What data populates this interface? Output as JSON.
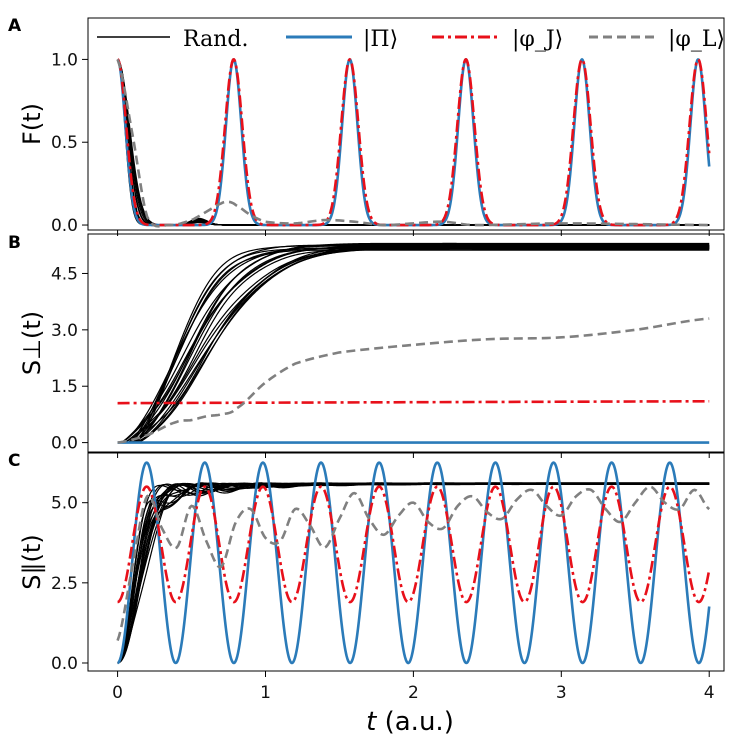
{
  "figure": {
    "xlabel_var": "t",
    "xlabel_unit": " (a.u.)",
    "colors": {
      "random": "#000000",
      "pi": "#2b7bb9",
      "phiJ": "#e8101a",
      "phiL": "#808080"
    }
  },
  "legend": {
    "items": [
      {
        "label": "Rand.",
        "style": "solid",
        "color": "#000000"
      },
      {
        "label": "|Π⟩",
        "style": "solid-thick",
        "color": "#2b7bb9"
      },
      {
        "label": "|φ_J⟩",
        "style": "dash-dot",
        "color": "#e8101a"
      },
      {
        "label": "|φ_L⟩",
        "style": "dashed",
        "color": "#808080"
      }
    ]
  },
  "chart_data": [
    {
      "panel": "A",
      "type": "line",
      "ylabel": "F(t)",
      "xlim": [
        -0.2,
        4.1
      ],
      "ylim": [
        -0.03,
        1.25
      ],
      "xticks": [
        0,
        1,
        2,
        3,
        4
      ],
      "yticks": [
        0.0,
        0.5,
        1.0
      ],
      "ytick_labels": [
        "0.0",
        "0.5",
        "1.0"
      ],
      "show_xtick_labels": false,
      "series": [
        {
          "name": "|Π⟩",
          "period": 0.785,
          "width": 0.052,
          "amplitude": 1.0
        },
        {
          "name": "|φ_J⟩",
          "period": 0.785,
          "width": 0.058,
          "amplitude": 1.0
        },
        {
          "name": "|φ_L⟩",
          "x": [
            0,
            0.1,
            0.2,
            0.35,
            0.5,
            0.6,
            0.7,
            0.75,
            0.8,
            0.9,
            1.0,
            1.2,
            1.4,
            1.6,
            1.8,
            2.0,
            2.2,
            2.4,
            3.0,
            4.0
          ],
          "y": [
            1.0,
            0.55,
            0.05,
            0.0,
            0.03,
            0.08,
            0.13,
            0.14,
            0.12,
            0.06,
            0.02,
            0.01,
            0.03,
            0.02,
            0.0,
            0.01,
            0.02,
            0.0,
            0.01,
            0.0
          ]
        },
        {
          "name": "Rand.",
          "count": 20,
          "decay_rate_range": [
            12,
            22
          ]
        }
      ]
    },
    {
      "panel": "B",
      "type": "line",
      "ylabel": "S⊥(t)",
      "xlim": [
        -0.2,
        4.1
      ],
      "ylim": [
        -0.25,
        5.55
      ],
      "xticks": [
        0,
        1,
        2,
        3,
        4
      ],
      "yticks": [
        0.0,
        1.5,
        3.0,
        4.5
      ],
      "ytick_labels": [
        "0.0",
        "1.5",
        "3.0",
        "4.5"
      ],
      "show_xtick_labels": false,
      "series": [
        {
          "name": "|Π⟩",
          "x": [
            0,
            4
          ],
          "y": [
            0.0,
            0.0
          ]
        },
        {
          "name": "|φ_J⟩",
          "x": [
            0,
            4
          ],
          "y": [
            1.05,
            1.1
          ]
        },
        {
          "name": "|φ_L⟩",
          "x": [
            0,
            0.2,
            0.4,
            0.5,
            0.6,
            0.7,
            0.8,
            1.0,
            1.2,
            1.5,
            2.0,
            2.5,
            3.0,
            3.5,
            4.0
          ],
          "y": [
            0.0,
            0.2,
            0.55,
            0.6,
            0.7,
            0.75,
            0.9,
            1.6,
            2.1,
            2.4,
            2.6,
            2.75,
            2.8,
            3.0,
            3.3
          ]
        },
        {
          "name": "Rand.",
          "count": 20,
          "saturation_range": [
            5.1,
            5.32
          ]
        }
      ]
    },
    {
      "panel": "C",
      "type": "line",
      "ylabel": "S∥(t)",
      "xlim": [
        -0.2,
        4.1
      ],
      "ylim": [
        -0.25,
        6.55
      ],
      "xticks": [
        0,
        1,
        2,
        3,
        4
      ],
      "xtick_labels": [
        "0",
        "1",
        "2",
        "3",
        "4"
      ],
      "yticks": [
        0.0,
        2.5,
        5.0
      ],
      "ytick_labels": [
        "0.0",
        "2.5",
        "5.0"
      ],
      "show_xtick_labels": true,
      "series": [
        {
          "name": "|Π⟩",
          "period": 0.393,
          "min": 0.0,
          "max": 6.25
        },
        {
          "name": "|φ_J⟩",
          "period": 0.393,
          "min": 1.9,
          "max": 5.5
        },
        {
          "name": "|φ_L⟩",
          "x": [
            0,
            0.1,
            0.2,
            0.3,
            0.4,
            0.5,
            0.6,
            0.7,
            0.8,
            0.9,
            1.0,
            1.1,
            1.2,
            1.3,
            1.4,
            1.5,
            1.6,
            1.7,
            1.8,
            1.9,
            2.0,
            2.1,
            2.2,
            2.3,
            2.4,
            2.5,
            2.6,
            2.7,
            2.8,
            2.9,
            3.0,
            3.1,
            3.2,
            3.3,
            3.4,
            3.5,
            3.6,
            3.7,
            3.8,
            3.9,
            4.0
          ],
          "y": [
            0.7,
            3.0,
            5.2,
            4.2,
            3.6,
            4.9,
            3.8,
            3.0,
            4.4,
            4.8,
            3.9,
            3.8,
            4.8,
            4.3,
            3.6,
            4.5,
            5.3,
            4.5,
            4.0,
            4.6,
            5.0,
            4.4,
            4.2,
            4.9,
            5.2,
            4.7,
            4.5,
            5.1,
            5.4,
            4.9,
            4.6,
            5.2,
            5.4,
            4.8,
            4.4,
            5.0,
            5.5,
            5.0,
            4.8,
            5.4,
            4.8
          ]
        },
        {
          "name": "Rand.",
          "count": 20,
          "saturation": 5.62
        }
      ]
    }
  ]
}
